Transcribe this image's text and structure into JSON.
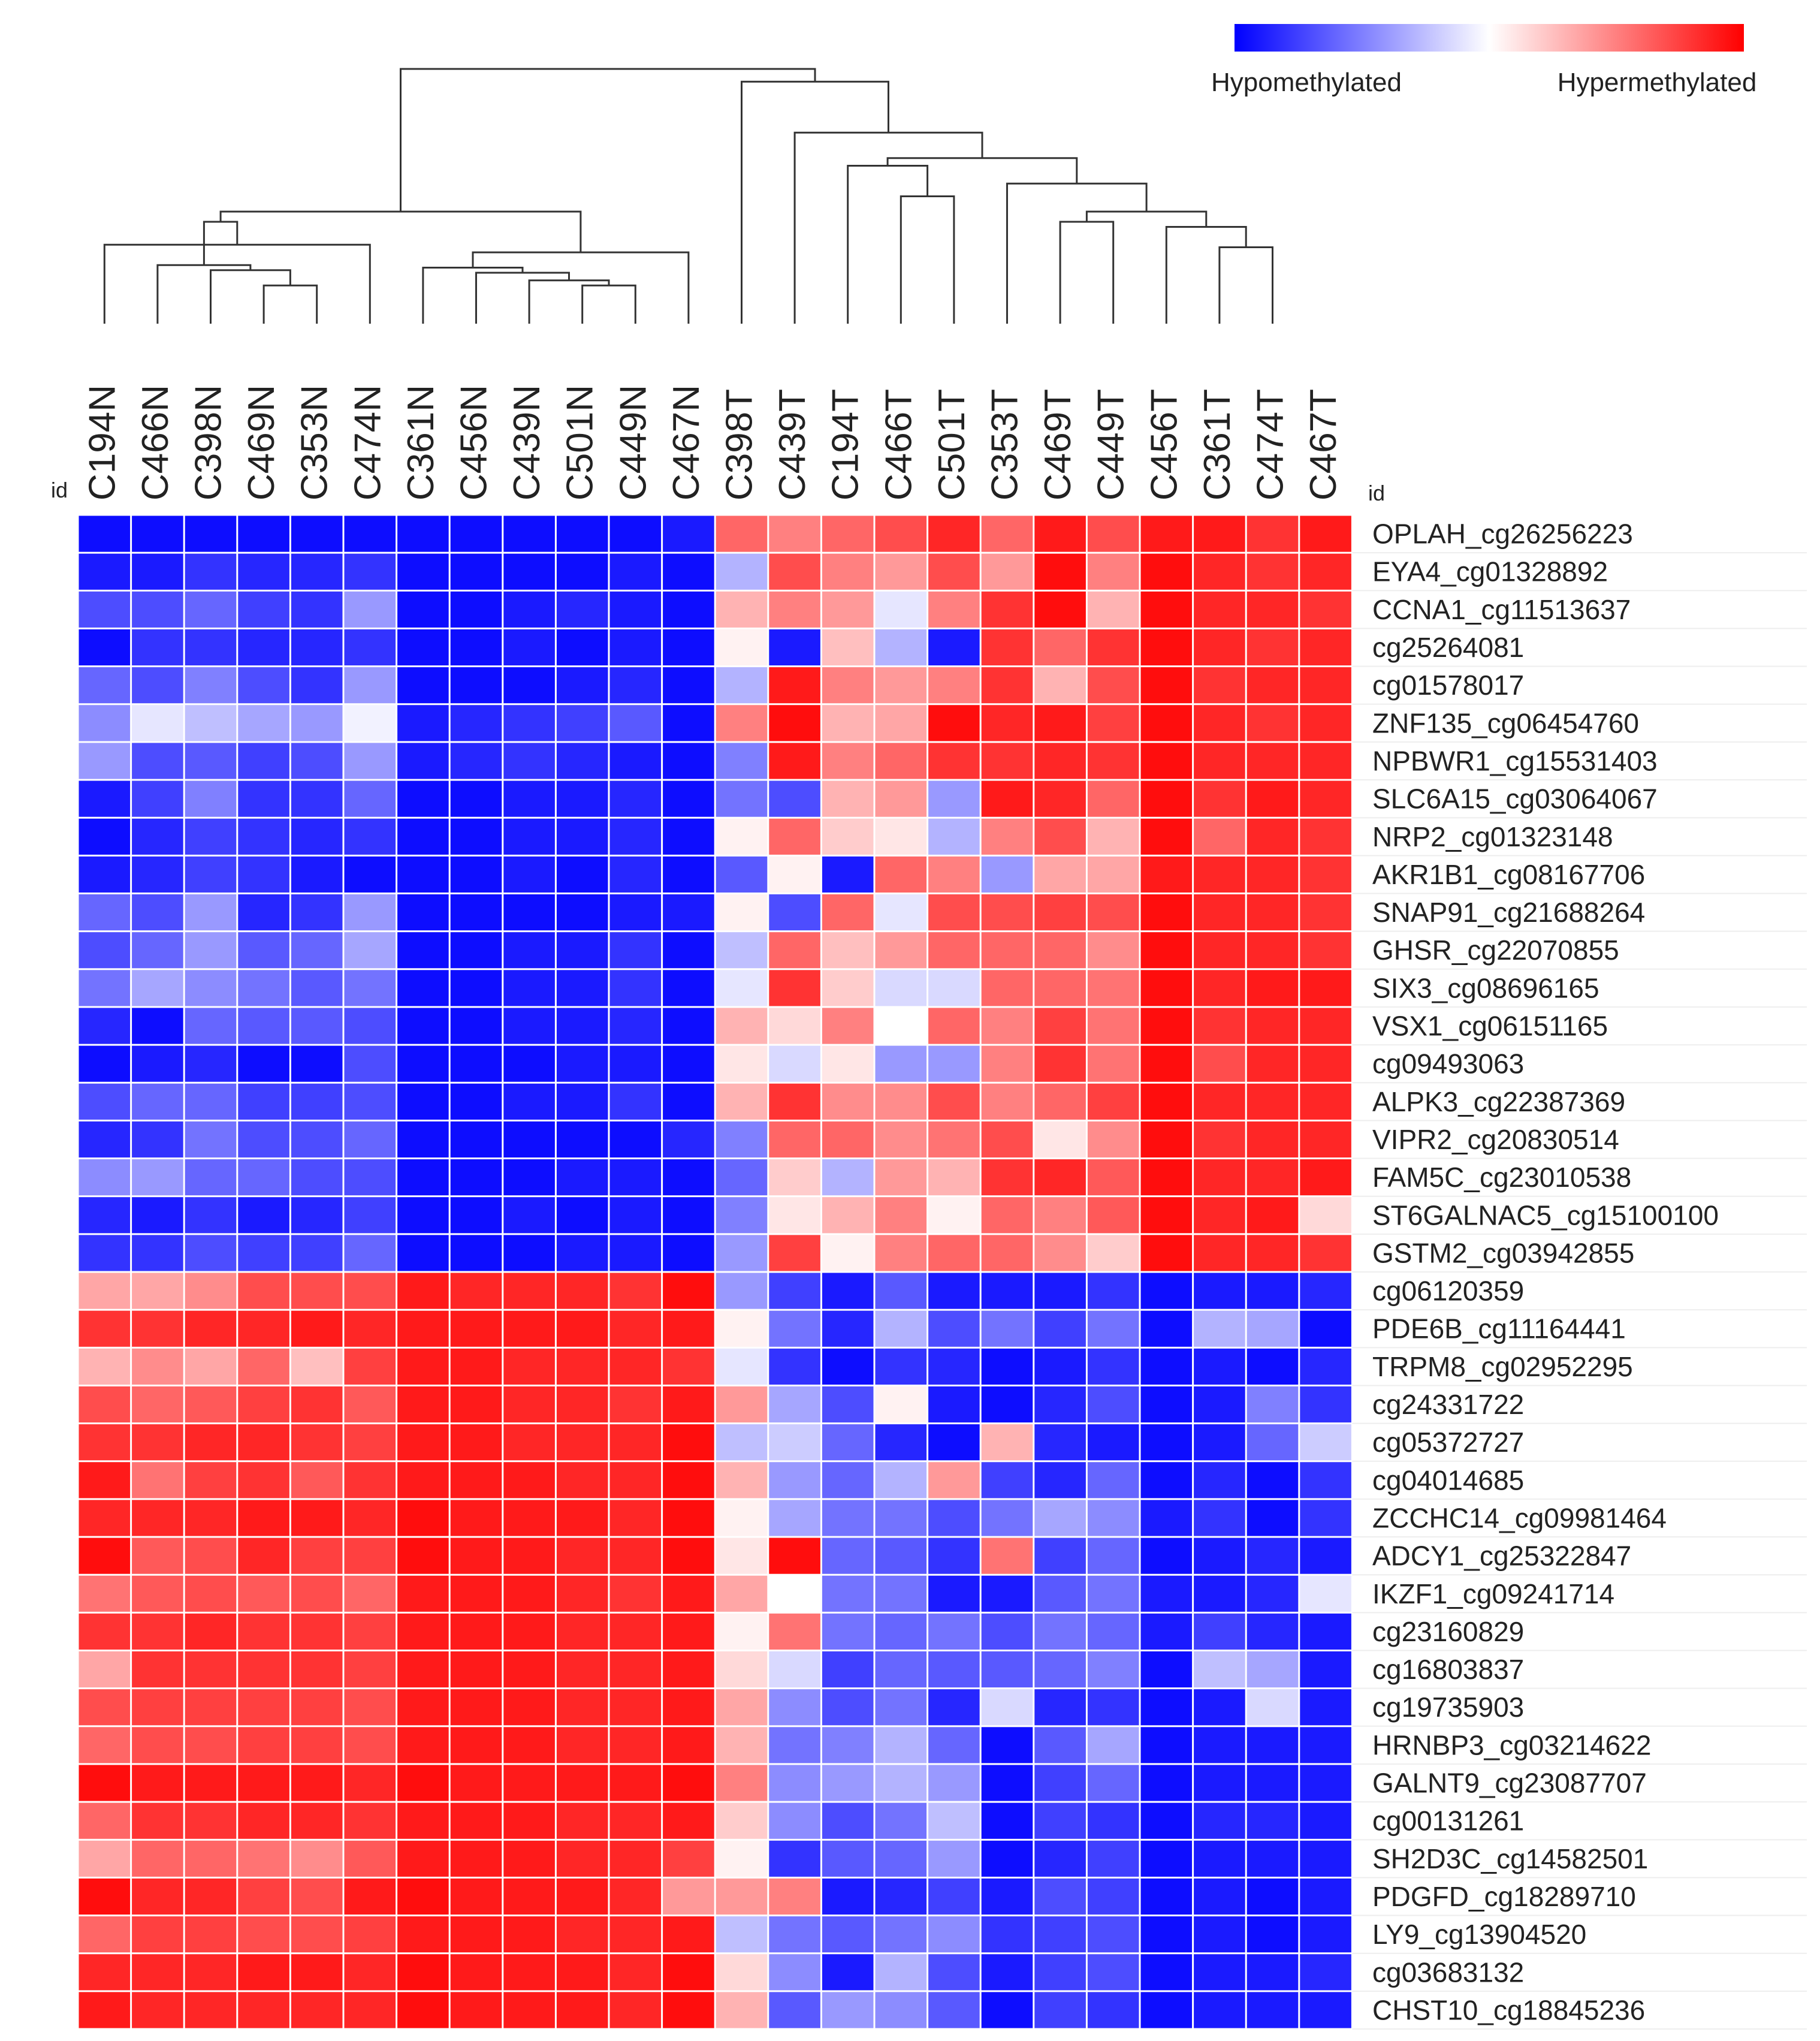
{
  "chart_data": {
    "type": "heatmap",
    "title": "",
    "id_label_left": "id",
    "id_label_right": "id",
    "legend": {
      "low_label": "Hypomethylated",
      "high_label": "Hypermethylated",
      "low_color": "#0000ff",
      "mid_color": "#ffffff",
      "high_color": "#ff0000",
      "range": [
        -1,
        1
      ],
      "placement": "top-right"
    },
    "columns": [
      "C194N",
      "C466N",
      "C398N",
      "C469N",
      "C353N",
      "C474N",
      "C361N",
      "C456N",
      "C439N",
      "C501N",
      "C449N",
      "C467N",
      "C398T",
      "C439T",
      "C194T",
      "C466T",
      "C501T",
      "C353T",
      "C469T",
      "C449T",
      "C456T",
      "C361T",
      "C474T",
      "C467T"
    ],
    "rows": [
      "OPLAH_cg26256223",
      "EYA4_cg01328892",
      "CCNA1_cg11513637",
      "cg25264081",
      "cg01578017",
      "ZNF135_cg06454760",
      "NPBWR1_cg15531403",
      "SLC6A15_cg03064067",
      "NRP2_cg01323148",
      "AKR1B1_cg08167706",
      "SNAP91_cg21688264",
      "GHSR_cg22070855",
      "SIX3_cg08696165",
      "VSX1_cg06151165",
      "cg09493063",
      "ALPK3_cg22387369",
      "VIPR2_cg20830514",
      "FAM5C_cg23010538",
      "ST6GALNAC5_cg15100100",
      "GSTM2_cg03942855",
      "cg06120359",
      "PDE6B_cg11164441",
      "TRPM8_cg02952295",
      "cg24331722",
      "cg05372727",
      "cg04014685",
      "ZCCHC14_cg09981464",
      "ADCY1_cg25322847",
      "IKZF1_cg09241714",
      "cg23160829",
      "cg16803837",
      "cg19735903",
      "HRNBP3_cg03214622",
      "GALNT9_cg23087707",
      "cg00131261",
      "SH2D3C_cg14582501",
      "PDGFD_cg18289710",
      "LY9_cg13904520",
      "cg03683132",
      "CHST10_cg18845236"
    ],
    "values": [
      [
        -0.95,
        -0.95,
        -0.95,
        -0.95,
        -0.95,
        -0.95,
        -0.95,
        -0.95,
        -0.95,
        -0.95,
        -0.95,
        -0.9,
        0.6,
        0.5,
        0.6,
        0.7,
        0.85,
        0.6,
        0.9,
        0.7,
        0.9,
        0.9,
        0.8,
        0.9
      ],
      [
        -0.9,
        -0.9,
        -0.8,
        -0.85,
        -0.85,
        -0.8,
        -0.95,
        -0.95,
        -0.95,
        -0.95,
        -0.9,
        -0.95,
        -0.3,
        0.7,
        0.5,
        0.4,
        0.7,
        0.4,
        0.95,
        0.5,
        0.95,
        0.85,
        0.8,
        0.85
      ],
      [
        -0.7,
        -0.7,
        -0.6,
        -0.75,
        -0.8,
        -0.4,
        -0.95,
        -0.95,
        -0.9,
        -0.85,
        -0.9,
        -0.95,
        0.3,
        0.5,
        0.4,
        -0.1,
        0.5,
        0.8,
        0.95,
        0.3,
        0.95,
        0.85,
        0.85,
        0.8
      ],
      [
        -0.95,
        -0.8,
        -0.8,
        -0.85,
        -0.85,
        -0.8,
        -0.95,
        -0.95,
        -0.9,
        -0.95,
        -0.9,
        -0.95,
        0.05,
        -0.9,
        0.25,
        -0.3,
        -0.9,
        0.8,
        0.6,
        0.8,
        0.95,
        0.85,
        0.8,
        0.85
      ],
      [
        -0.6,
        -0.7,
        -0.5,
        -0.7,
        -0.8,
        -0.4,
        -0.95,
        -0.95,
        -0.95,
        -0.9,
        -0.85,
        -0.95,
        -0.3,
        0.9,
        0.5,
        0.4,
        0.5,
        0.8,
        0.3,
        0.7,
        0.95,
        0.8,
        0.85,
        0.85
      ],
      [
        -0.45,
        -0.1,
        -0.25,
        -0.35,
        -0.4,
        -0.05,
        -0.9,
        -0.85,
        -0.8,
        -0.75,
        -0.65,
        -0.95,
        0.5,
        0.95,
        0.3,
        0.35,
        0.95,
        0.85,
        0.9,
        0.75,
        0.95,
        0.85,
        0.8,
        0.85
      ],
      [
        -0.4,
        -0.7,
        -0.65,
        -0.75,
        -0.7,
        -0.4,
        -0.9,
        -0.85,
        -0.8,
        -0.85,
        -0.9,
        -0.95,
        -0.5,
        0.9,
        0.5,
        0.6,
        0.8,
        0.8,
        0.85,
        0.8,
        0.95,
        0.85,
        0.85,
        0.85
      ],
      [
        -0.9,
        -0.75,
        -0.5,
        -0.8,
        -0.8,
        -0.6,
        -0.95,
        -0.95,
        -0.9,
        -0.9,
        -0.85,
        -0.95,
        -0.55,
        -0.7,
        0.3,
        0.4,
        -0.4,
        0.9,
        0.85,
        0.6,
        0.95,
        0.8,
        0.9,
        0.85
      ],
      [
        -0.95,
        -0.85,
        -0.75,
        -0.8,
        -0.85,
        -0.8,
        -0.95,
        -0.95,
        -0.9,
        -0.9,
        -0.85,
        -0.95,
        0.05,
        0.6,
        0.2,
        0.1,
        -0.3,
        0.5,
        0.7,
        0.3,
        0.95,
        0.6,
        0.85,
        0.8
      ],
      [
        -0.9,
        -0.85,
        -0.75,
        -0.8,
        -0.9,
        -0.95,
        -0.95,
        -0.95,
        -0.9,
        -0.95,
        -0.85,
        -0.95,
        -0.65,
        0.05,
        -0.9,
        0.6,
        0.5,
        -0.4,
        0.35,
        0.35,
        0.9,
        0.85,
        0.85,
        0.8
      ],
      [
        -0.6,
        -0.7,
        -0.4,
        -0.85,
        -0.8,
        -0.4,
        -0.95,
        -0.95,
        -0.95,
        -0.95,
        -0.9,
        -0.9,
        0.05,
        -0.7,
        0.6,
        -0.1,
        0.7,
        0.7,
        0.75,
        0.7,
        0.95,
        0.85,
        0.85,
        0.8
      ],
      [
        -0.7,
        -0.6,
        -0.4,
        -0.65,
        -0.6,
        -0.35,
        -0.95,
        -0.95,
        -0.9,
        -0.9,
        -0.8,
        -0.95,
        -0.25,
        0.6,
        0.25,
        0.4,
        0.6,
        0.6,
        0.6,
        0.45,
        0.95,
        0.85,
        0.85,
        0.8
      ],
      [
        -0.55,
        -0.35,
        -0.45,
        -0.55,
        -0.65,
        -0.55,
        -0.95,
        -0.95,
        -0.9,
        -0.9,
        -0.8,
        -0.95,
        -0.1,
        0.8,
        0.2,
        -0.15,
        -0.15,
        0.6,
        0.6,
        0.55,
        0.95,
        0.85,
        0.9,
        0.9
      ],
      [
        -0.85,
        -0.95,
        -0.6,
        -0.65,
        -0.65,
        -0.7,
        -0.95,
        -0.95,
        -0.9,
        -0.9,
        -0.85,
        -0.95,
        0.3,
        0.15,
        0.5,
        0.0,
        0.6,
        0.5,
        0.75,
        0.55,
        0.95,
        0.8,
        0.85,
        0.85
      ],
      [
        -0.95,
        -0.9,
        -0.85,
        -0.95,
        -0.95,
        -0.7,
        -0.95,
        -0.95,
        -0.95,
        -0.9,
        -0.9,
        -0.95,
        0.1,
        -0.15,
        0.1,
        -0.4,
        -0.4,
        0.5,
        0.8,
        0.55,
        0.95,
        0.7,
        0.85,
        0.85
      ],
      [
        -0.7,
        -0.6,
        -0.6,
        -0.75,
        -0.75,
        -0.7,
        -0.95,
        -0.95,
        -0.9,
        -0.9,
        -0.8,
        -0.95,
        0.3,
        0.8,
        0.45,
        0.45,
        0.7,
        0.5,
        0.6,
        0.75,
        0.95,
        0.85,
        0.85,
        0.85
      ],
      [
        -0.85,
        -0.8,
        -0.55,
        -0.7,
        -0.7,
        -0.6,
        -0.95,
        -0.95,
        -0.95,
        -0.95,
        -0.95,
        -0.85,
        -0.5,
        0.6,
        0.6,
        0.45,
        0.55,
        0.7,
        0.1,
        0.45,
        0.95,
        0.8,
        0.85,
        0.85
      ],
      [
        -0.45,
        -0.4,
        -0.6,
        -0.6,
        -0.7,
        -0.7,
        -0.95,
        -0.95,
        -0.95,
        -0.9,
        -0.9,
        -0.95,
        -0.6,
        0.2,
        -0.3,
        0.4,
        0.3,
        0.8,
        0.85,
        0.65,
        0.95,
        0.85,
        0.85,
        0.9
      ],
      [
        -0.85,
        -0.9,
        -0.8,
        -0.9,
        -0.85,
        -0.75,
        -0.95,
        -0.95,
        -0.9,
        -0.95,
        -0.9,
        -0.95,
        -0.5,
        0.1,
        0.3,
        0.5,
        0.05,
        0.6,
        0.5,
        0.65,
        0.95,
        0.85,
        0.9,
        0.15
      ],
      [
        -0.8,
        -0.8,
        -0.7,
        -0.75,
        -0.75,
        -0.6,
        -0.95,
        -0.95,
        -0.95,
        -0.9,
        -0.9,
        -0.95,
        -0.4,
        0.75,
        0.05,
        0.5,
        0.6,
        0.6,
        0.45,
        0.2,
        0.95,
        0.85,
        0.85,
        0.8
      ],
      [
        0.35,
        0.35,
        0.45,
        0.7,
        0.7,
        0.7,
        0.9,
        0.85,
        0.85,
        0.85,
        0.8,
        0.95,
        -0.4,
        -0.75,
        -0.9,
        -0.65,
        -0.9,
        -0.9,
        -0.9,
        -0.8,
        -0.95,
        -0.9,
        -0.9,
        -0.85
      ],
      [
        0.8,
        0.8,
        0.85,
        0.85,
        0.9,
        0.85,
        0.9,
        0.9,
        0.9,
        0.9,
        0.85,
        0.9,
        0.05,
        -0.55,
        -0.85,
        -0.3,
        -0.7,
        -0.55,
        -0.75,
        -0.55,
        -0.95,
        -0.3,
        -0.35,
        -0.95
      ],
      [
        0.3,
        0.45,
        0.35,
        0.6,
        0.25,
        0.75,
        0.9,
        0.9,
        0.85,
        0.85,
        0.85,
        0.8,
        -0.1,
        -0.8,
        -0.95,
        -0.8,
        -0.85,
        -0.95,
        -0.9,
        -0.8,
        -0.95,
        -0.9,
        -0.95,
        -0.85
      ],
      [
        0.7,
        0.6,
        0.65,
        0.75,
        0.8,
        0.65,
        0.9,
        0.9,
        0.85,
        0.85,
        0.8,
        0.9,
        0.4,
        -0.35,
        -0.7,
        0.05,
        -0.9,
        -0.95,
        -0.85,
        -0.7,
        -0.95,
        -0.9,
        -0.5,
        -0.8
      ],
      [
        0.8,
        0.8,
        0.85,
        0.85,
        0.8,
        0.75,
        0.9,
        0.9,
        0.85,
        0.85,
        0.85,
        0.95,
        -0.25,
        -0.2,
        -0.6,
        -0.85,
        -0.95,
        0.3,
        -0.85,
        -0.9,
        -0.95,
        -0.9,
        -0.6,
        -0.2
      ],
      [
        0.9,
        0.55,
        0.75,
        0.8,
        0.65,
        0.8,
        0.9,
        0.9,
        0.9,
        0.85,
        0.85,
        0.95,
        0.3,
        -0.4,
        -0.6,
        -0.3,
        0.4,
        -0.75,
        -0.85,
        -0.6,
        -0.95,
        -0.85,
        -0.95,
        -0.8
      ],
      [
        0.85,
        0.85,
        0.85,
        0.9,
        0.9,
        0.85,
        0.95,
        0.9,
        0.9,
        0.9,
        0.85,
        0.95,
        0.05,
        -0.35,
        -0.55,
        -0.55,
        -0.7,
        -0.55,
        -0.35,
        -0.45,
        -0.9,
        -0.8,
        -0.95,
        -0.8
      ],
      [
        0.95,
        0.65,
        0.7,
        0.85,
        0.75,
        0.75,
        0.95,
        0.9,
        0.9,
        0.85,
        0.85,
        0.95,
        0.1,
        0.95,
        -0.6,
        -0.65,
        -0.8,
        0.55,
        -0.75,
        -0.6,
        -0.95,
        -0.9,
        -0.85,
        -0.9
      ],
      [
        0.55,
        0.65,
        0.7,
        0.65,
        0.7,
        0.6,
        0.9,
        0.9,
        0.9,
        0.85,
        0.8,
        0.9,
        0.35,
        0.0,
        -0.55,
        -0.55,
        -0.9,
        -0.9,
        -0.65,
        -0.55,
        -0.9,
        -0.9,
        -0.85,
        -0.1
      ],
      [
        0.8,
        0.8,
        0.85,
        0.8,
        0.8,
        0.75,
        0.9,
        0.9,
        0.9,
        0.85,
        0.85,
        0.9,
        0.05,
        0.55,
        -0.55,
        -0.6,
        -0.55,
        -0.7,
        -0.55,
        -0.6,
        -0.9,
        -0.75,
        -0.85,
        -0.9
      ],
      [
        0.35,
        0.8,
        0.8,
        0.8,
        0.8,
        0.75,
        0.9,
        0.9,
        0.9,
        0.85,
        0.85,
        0.9,
        0.15,
        -0.15,
        -0.75,
        -0.6,
        -0.65,
        -0.65,
        -0.6,
        -0.5,
        -0.95,
        -0.25,
        -0.35,
        -0.9
      ],
      [
        0.7,
        0.75,
        0.75,
        0.75,
        0.75,
        0.7,
        0.9,
        0.9,
        0.9,
        0.85,
        0.85,
        0.9,
        0.35,
        -0.45,
        -0.7,
        -0.55,
        -0.85,
        -0.15,
        -0.85,
        -0.8,
        -0.95,
        -0.9,
        -0.15,
        -0.9
      ],
      [
        0.6,
        0.7,
        0.7,
        0.75,
        0.75,
        0.7,
        0.9,
        0.9,
        0.9,
        0.85,
        0.85,
        0.9,
        0.3,
        -0.55,
        -0.5,
        -0.3,
        -0.6,
        -0.95,
        -0.65,
        -0.35,
        -0.95,
        -0.9,
        -0.9,
        -0.9
      ],
      [
        0.95,
        0.9,
        0.9,
        0.9,
        0.9,
        0.85,
        0.95,
        0.9,
        0.9,
        0.9,
        0.9,
        0.95,
        0.5,
        -0.45,
        -0.4,
        -0.3,
        -0.4,
        -0.95,
        -0.75,
        -0.6,
        -0.95,
        -0.9,
        -0.9,
        -0.9
      ],
      [
        0.6,
        0.8,
        0.8,
        0.85,
        0.85,
        0.8,
        0.9,
        0.9,
        0.9,
        0.85,
        0.85,
        0.9,
        0.2,
        -0.45,
        -0.7,
        -0.55,
        -0.25,
        -0.95,
        -0.75,
        -0.8,
        -0.95,
        -0.85,
        -0.85,
        -0.9
      ],
      [
        0.35,
        0.6,
        0.6,
        0.55,
        0.45,
        0.65,
        0.9,
        0.9,
        0.9,
        0.85,
        0.85,
        0.75,
        0.05,
        -0.8,
        -0.65,
        -0.6,
        -0.4,
        -0.95,
        -0.85,
        -0.75,
        -0.95,
        -0.9,
        -0.9,
        -0.9
      ],
      [
        0.95,
        0.85,
        0.85,
        0.75,
        0.7,
        0.9,
        0.95,
        0.9,
        0.9,
        0.9,
        0.85,
        0.4,
        0.4,
        0.5,
        -0.9,
        -0.85,
        -0.75,
        -0.9,
        -0.7,
        -0.75,
        -0.95,
        -0.9,
        -0.95,
        -0.9
      ],
      [
        0.6,
        0.75,
        0.75,
        0.7,
        0.7,
        0.75,
        0.9,
        0.9,
        0.9,
        0.85,
        0.85,
        0.9,
        -0.25,
        -0.55,
        -0.65,
        -0.55,
        -0.45,
        -0.8,
        -0.75,
        -0.7,
        -0.95,
        -0.9,
        -0.95,
        -0.9
      ],
      [
        0.85,
        0.85,
        0.85,
        0.9,
        0.9,
        0.85,
        0.95,
        0.9,
        0.9,
        0.9,
        0.85,
        0.95,
        0.15,
        -0.45,
        -0.9,
        -0.3,
        -0.7,
        -0.9,
        -0.75,
        -0.7,
        -0.95,
        -0.9,
        -0.9,
        -0.85
      ],
      [
        0.9,
        0.85,
        0.85,
        0.85,
        0.85,
        0.85,
        0.95,
        0.9,
        0.9,
        0.9,
        0.85,
        0.95,
        0.3,
        -0.65,
        -0.4,
        -0.45,
        -0.65,
        -0.95,
        -0.75,
        -0.8,
        -0.95,
        -0.9,
        -0.9,
        -0.9
      ]
    ],
    "column_dendrogram": [
      [
        0,
        1,
        2,
        3,
        4,
        5,
        6,
        7,
        8,
        9,
        10,
        11,
        12,
        13,
        14,
        15,
        16,
        17,
        18,
        19,
        20,
        21,
        22,
        23
      ],
      [
        [
          3,
          4,
          0.15
        ],
        [
          24,
          2,
          0.21
        ],
        [
          1,
          25,
          0.23
        ],
        [
          0,
          5,
          0.31
        ],
        [
          27,
          26,
          0.4
        ],
        [
          9,
          10,
          0.15
        ],
        [
          8,
          29,
          0.17
        ],
        [
          7,
          30,
          0.2
        ],
        [
          6,
          31,
          0.22
        ],
        [
          32,
          11,
          0.28
        ],
        [
          28,
          33,
          0.44
        ],
        [
          15,
          16,
          0.5
        ],
        [
          14,
          35,
          0.62
        ],
        [
          21,
          22,
          0.3
        ],
        [
          20,
          37,
          0.38
        ],
        [
          18,
          19,
          0.4
        ],
        [
          39,
          38,
          0.44
        ],
        [
          17,
          40,
          0.55
        ],
        [
          36,
          41,
          0.65
        ],
        [
          13,
          42,
          0.75
        ],
        [
          12,
          43,
          0.95
        ],
        [
          34,
          44,
          1.0
        ]
      ]
    ]
  }
}
